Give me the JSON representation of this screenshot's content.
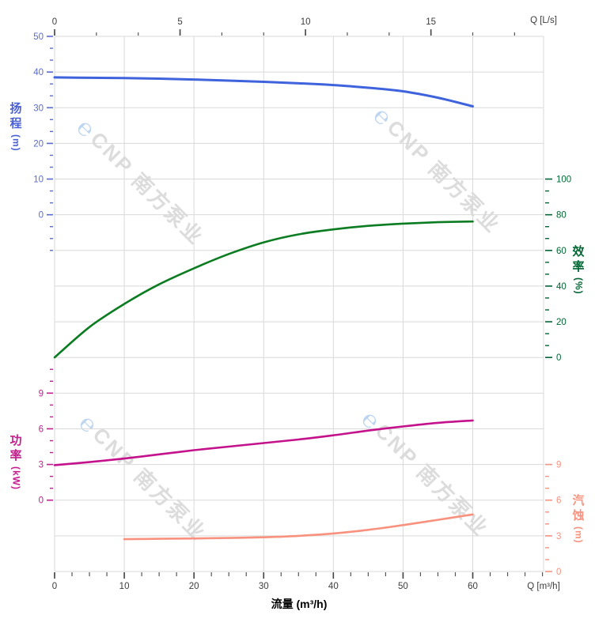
{
  "watermark": {
    "logo_glyph": "℮",
    "text": "CNP 南方泵业"
  },
  "chart_data": {
    "type": "line",
    "title": "",
    "grid": true,
    "bottom_axis": {
      "title": "流量 (m³/h)",
      "unit_label": "Q [m³/h]",
      "tick_labels": [
        "0",
        "10",
        "20",
        "30",
        "40",
        "50",
        "60"
      ],
      "tick_values": [
        0,
        10,
        20,
        30,
        40,
        50,
        60
      ],
      "minor_step": 2.5,
      "range_shown": [
        0,
        70.2
      ]
    },
    "top_axis": {
      "unit_label": "Q [L/s]",
      "tick_labels": [
        "0",
        "5",
        "10",
        "15"
      ],
      "tick_values": [
        0,
        5,
        10,
        15
      ],
      "units_to_m3h": 3.6,
      "minor_step": 1.6667
    },
    "y_axes": [
      {
        "id": "head",
        "title": "扬程",
        "unit": "(m)",
        "side": "left",
        "color": "#5a6bd0",
        "tick_labels": [
          "50",
          "40",
          "30",
          "20",
          "10",
          "0"
        ],
        "tick_values": [
          50,
          40,
          30,
          20,
          10,
          0
        ],
        "row_start": 0,
        "minor_row_span": [
          0,
          6
        ]
      },
      {
        "id": "efficiency",
        "title": "效率",
        "unit": "(%)",
        "side": "right",
        "color": "#006633",
        "tick_labels": [
          "100",
          "80",
          "60",
          "40",
          "20",
          "0"
        ],
        "tick_values": [
          100,
          80,
          60,
          40,
          20,
          0
        ],
        "row_start": 4,
        "minor_row_span": [
          4,
          9
        ]
      },
      {
        "id": "power",
        "title": "功率",
        "unit": "(kW)",
        "side": "left",
        "color": "#c41e8e",
        "tick_labels": [
          "9",
          "6",
          "3",
          "0"
        ],
        "tick_values": [
          9,
          6,
          3,
          0
        ],
        "row_start": 10,
        "minor_row_span": [
          9.3333,
          13
        ]
      },
      {
        "id": "npsh",
        "title": "汽蚀",
        "unit": "(m)",
        "side": "right",
        "color": "#f8917e",
        "tick_labels": [
          "9",
          "6",
          "3",
          "0"
        ],
        "tick_values": [
          9,
          6,
          3,
          0
        ],
        "row_start": 12,
        "minor_row_span": [
          12,
          15
        ]
      }
    ],
    "series": [
      {
        "id": "head-curve",
        "name": "扬程",
        "axis": "head",
        "color": "#3e63dd",
        "width": 3,
        "x": [
          0,
          5,
          10,
          15,
          20,
          25,
          30,
          35,
          40,
          45,
          50,
          55,
          60
        ],
        "y": [
          38.5,
          38.4,
          38.3,
          38.15,
          37.9,
          37.6,
          37.25,
          36.85,
          36.35,
          35.6,
          34.6,
          32.8,
          30.4
        ]
      },
      {
        "id": "efficiency-curve",
        "name": "效率",
        "axis": "efficiency",
        "color": "#0b7c21",
        "width": 2.6,
        "x": [
          0,
          5,
          10,
          15,
          20,
          25,
          30,
          35,
          40,
          45,
          50,
          55,
          60
        ],
        "y": [
          0,
          17,
          30,
          41,
          50,
          58,
          64.5,
          69,
          71.8,
          73.8,
          75,
          75.8,
          76.2
        ]
      },
      {
        "id": "power-curve",
        "name": "功率",
        "axis": "power",
        "color": "#c4128c",
        "width": 2.6,
        "x": [
          0,
          5,
          10,
          15,
          20,
          25,
          30,
          35,
          40,
          45,
          50,
          55,
          60
        ],
        "y": [
          2.95,
          3.2,
          3.5,
          3.85,
          4.2,
          4.5,
          4.8,
          5.1,
          5.45,
          5.85,
          6.2,
          6.5,
          6.7
        ]
      },
      {
        "id": "npsh-curve",
        "name": "汽蚀",
        "axis": "npsh",
        "color": "#f8917e",
        "width": 2.6,
        "x": [
          10,
          15,
          20,
          25,
          30,
          35,
          40,
          45,
          50,
          55,
          60
        ],
        "y": [
          2.72,
          2.75,
          2.78,
          2.82,
          2.88,
          3.0,
          3.2,
          3.5,
          3.9,
          4.35,
          4.8
        ]
      }
    ]
  }
}
